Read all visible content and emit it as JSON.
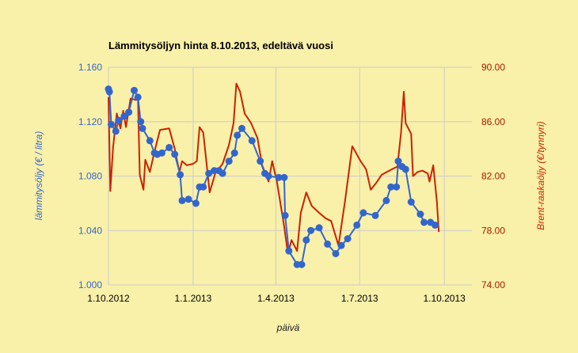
{
  "chart_data": {
    "type": "line",
    "title": "Lämmitysöljyn hinta 8.10.2013, edeltävä vuosi",
    "xlabel": "päivä",
    "ylabel_left": "lämmitysöljy (€ / litra)",
    "ylabel_right": "Brent-raakaöljy (€/tynnyri)",
    "x_ticks": [
      "1.10.2012",
      "1.1.2013",
      "1.4.2013",
      "1.7.2013",
      "1.10.2013"
    ],
    "x_range": [
      "2012-10-01",
      "2013-10-31"
    ],
    "y_left_ticks": [
      "1.000",
      "1.040",
      "1.080",
      "1.120",
      "1.160"
    ],
    "y_left_range": [
      1.0,
      1.16
    ],
    "y_right_ticks": [
      "74.00",
      "78.00",
      "82.00",
      "86.00",
      "90.00"
    ],
    "y_right_range": [
      74.0,
      90.0
    ],
    "grid": true,
    "colors": {
      "heating_oil": "#3366cc",
      "brent": "#cc2200",
      "background": "#f9f0a9",
      "grid": "#cccccc"
    },
    "series": [
      {
        "axis": "left",
        "marker": "circle",
        "color": "#3366cc",
        "points": [
          [
            "2012-10-01",
            1.144
          ],
          [
            "2012-10-02",
            1.142
          ],
          [
            "2012-10-04",
            1.118
          ],
          [
            "2012-10-09",
            1.113
          ],
          [
            "2012-10-12",
            1.121
          ],
          [
            "2012-10-18",
            1.124
          ],
          [
            "2012-10-23",
            1.127
          ],
          [
            "2012-10-29",
            1.143
          ],
          [
            "2012-11-02",
            1.138
          ],
          [
            "2012-11-05",
            1.12
          ],
          [
            "2012-11-07",
            1.115
          ],
          [
            "2012-11-15",
            1.106
          ],
          [
            "2012-11-20",
            1.097
          ],
          [
            "2012-11-23",
            1.096
          ],
          [
            "2012-11-28",
            1.097
          ],
          [
            "2012-12-06",
            1.101
          ],
          [
            "2012-12-12",
            1.096
          ],
          [
            "2012-12-18",
            1.081
          ],
          [
            "2012-12-20",
            1.062
          ],
          [
            "2012-12-27",
            1.063
          ],
          [
            "2013-01-04",
            1.06
          ],
          [
            "2013-01-08",
            1.072
          ],
          [
            "2013-01-12",
            1.072
          ],
          [
            "2013-01-18",
            1.082
          ],
          [
            "2013-01-24",
            1.084
          ],
          [
            "2013-01-29",
            1.084
          ],
          [
            "2013-02-02",
            1.082
          ],
          [
            "2013-02-09",
            1.091
          ],
          [
            "2013-02-15",
            1.097
          ],
          [
            "2013-02-18",
            1.11
          ],
          [
            "2013-02-23",
            1.115
          ],
          [
            "2013-03-06",
            1.106
          ],
          [
            "2013-03-15",
            1.091
          ],
          [
            "2013-03-20",
            1.082
          ],
          [
            "2013-03-24",
            1.08
          ],
          [
            "2013-04-04",
            1.079
          ],
          [
            "2013-04-10",
            1.079
          ],
          [
            "2013-04-11",
            1.051
          ],
          [
            "2013-04-15",
            1.025
          ],
          [
            "2013-04-24",
            1.015
          ],
          [
            "2013-04-29",
            1.015
          ],
          [
            "2013-05-04",
            1.033
          ],
          [
            "2013-05-09",
            1.04
          ],
          [
            "2013-05-18",
            1.042
          ],
          [
            "2013-05-27",
            1.03
          ],
          [
            "2013-06-05",
            1.023
          ],
          [
            "2013-06-11",
            1.029
          ],
          [
            "2013-06-18",
            1.034
          ],
          [
            "2013-06-28",
            1.044
          ],
          [
            "2013-07-05",
            1.053
          ],
          [
            "2013-07-18",
            1.051
          ],
          [
            "2013-07-30",
            1.062
          ],
          [
            "2013-08-04",
            1.072
          ],
          [
            "2013-08-10",
            1.072
          ],
          [
            "2013-08-12",
            1.091
          ],
          [
            "2013-08-16",
            1.087
          ],
          [
            "2013-08-20",
            1.085
          ],
          [
            "2013-08-26",
            1.061
          ],
          [
            "2013-09-05",
            1.052
          ],
          [
            "2013-09-09",
            1.046
          ],
          [
            "2013-09-16",
            1.046
          ],
          [
            "2013-09-21",
            1.044
          ]
        ]
      },
      {
        "axis": "right",
        "marker": "none",
        "color": "#cc2200",
        "points": [
          [
            "2012-10-01",
            87.8
          ],
          [
            "2012-10-03",
            80.9
          ],
          [
            "2012-10-06",
            84.1
          ],
          [
            "2012-10-10",
            86.6
          ],
          [
            "2012-10-14",
            85.5
          ],
          [
            "2012-10-17",
            86.8
          ],
          [
            "2012-10-20",
            85.6
          ],
          [
            "2012-10-25",
            87.7
          ],
          [
            "2012-10-31",
            87.6
          ],
          [
            "2012-11-02",
            87.9
          ],
          [
            "2012-11-04",
            82.1
          ],
          [
            "2012-11-08",
            81.0
          ],
          [
            "2012-11-10",
            83.2
          ],
          [
            "2012-11-15",
            82.3
          ],
          [
            "2012-11-20",
            83.8
          ],
          [
            "2012-11-26",
            85.4
          ],
          [
            "2012-12-06",
            85.5
          ],
          [
            "2012-12-12",
            84.0
          ],
          [
            "2012-12-17",
            82.3
          ],
          [
            "2012-12-20",
            83.1
          ],
          [
            "2012-12-25",
            82.8
          ],
          [
            "2013-01-01",
            82.9
          ],
          [
            "2013-01-05",
            83.1
          ],
          [
            "2013-01-08",
            85.6
          ],
          [
            "2013-01-12",
            85.2
          ],
          [
            "2013-01-19",
            80.8
          ],
          [
            "2013-01-25",
            82.2
          ],
          [
            "2013-02-02",
            82.9
          ],
          [
            "2013-02-09",
            84.3
          ],
          [
            "2013-02-14",
            85.9
          ],
          [
            "2013-02-17",
            88.8
          ],
          [
            "2013-02-21",
            88.2
          ],
          [
            "2013-02-26",
            86.6
          ],
          [
            "2013-03-05",
            85.9
          ],
          [
            "2013-03-12",
            84.8
          ],
          [
            "2013-03-17",
            82.8
          ],
          [
            "2013-03-24",
            81.6
          ],
          [
            "2013-03-28",
            83.1
          ],
          [
            "2013-04-02",
            81.6
          ],
          [
            "2013-04-10",
            78.3
          ],
          [
            "2013-04-14",
            76.3
          ],
          [
            "2013-04-18",
            77.3
          ],
          [
            "2013-04-21",
            76.9
          ],
          [
            "2013-04-24",
            76.5
          ],
          [
            "2013-04-28",
            79.3
          ],
          [
            "2013-05-04",
            80.8
          ],
          [
            "2013-05-10",
            79.8
          ],
          [
            "2013-05-18",
            79.3
          ],
          [
            "2013-05-25",
            78.9
          ],
          [
            "2013-05-31",
            78.7
          ],
          [
            "2013-06-08",
            76.9
          ],
          [
            "2013-06-15",
            80.1
          ],
          [
            "2013-06-23",
            84.2
          ],
          [
            "2013-07-02",
            83.1
          ],
          [
            "2013-07-08",
            82.5
          ],
          [
            "2013-07-13",
            81.0
          ],
          [
            "2013-07-19",
            81.5
          ],
          [
            "2013-07-25",
            82.1
          ],
          [
            "2013-08-05",
            82.5
          ],
          [
            "2013-08-11",
            82.7
          ],
          [
            "2013-08-15",
            85.2
          ],
          [
            "2013-08-18",
            88.2
          ],
          [
            "2013-08-20",
            85.9
          ],
          [
            "2013-08-26",
            85.1
          ],
          [
            "2013-08-28",
            82.0
          ],
          [
            "2013-09-02",
            82.3
          ],
          [
            "2013-09-07",
            82.4
          ],
          [
            "2013-09-10",
            82.3
          ],
          [
            "2013-09-13",
            82.2
          ],
          [
            "2013-09-15",
            81.6
          ],
          [
            "2013-09-19",
            82.8
          ],
          [
            "2013-09-23",
            80.1
          ],
          [
            "2013-09-25",
            77.9
          ]
        ]
      }
    ]
  }
}
